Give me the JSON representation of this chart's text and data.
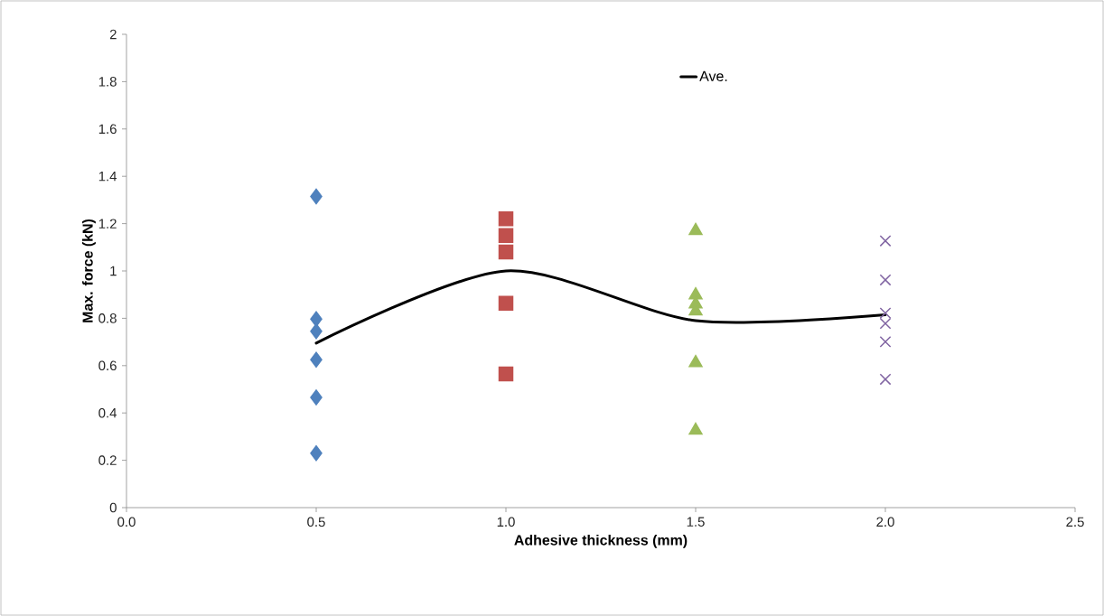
{
  "chart_data": {
    "type": "scatter",
    "xlabel": "Adhesive thickness (mm)",
    "ylabel": "Max. force (kN)",
    "xlim": [
      0,
      2.5
    ],
    "xticks": [
      {
        "value": 0,
        "label": "0.0"
      },
      {
        "value": 0.5,
        "label": "0.5"
      },
      {
        "value": 1,
        "label": "1.0"
      },
      {
        "value": 1.5,
        "label": "1.5"
      },
      {
        "value": 2,
        "label": "2.0"
      },
      {
        "value": 2.5,
        "label": "2.5"
      }
    ],
    "ylim": [
      0,
      2
    ],
    "yticks": [
      0,
      0.2,
      0.4,
      0.6,
      0.8,
      1,
      1.2,
      1.4,
      1.6,
      1.8,
      2
    ],
    "grid": false,
    "legend": "top right",
    "series": [
      {
        "marker": "diamond",
        "color": "#4f81bd",
        "x": [
          0.5,
          0.5,
          0.5,
          0.5,
          0.5,
          0.5
        ],
        "values": [
          1.315,
          0.797,
          0.745,
          0.625,
          0.466,
          0.23
        ]
      },
      {
        "marker": "square",
        "color": "#c0504d",
        "x": [
          1,
          1,
          1,
          1,
          1
        ],
        "values": [
          1.22,
          1.15,
          1.08,
          0.864,
          0.565
        ]
      },
      {
        "marker": "triangle",
        "color": "#9bbb59",
        "x": [
          1.5,
          1.5,
          1.5,
          1.5,
          1.5,
          1.5
        ],
        "values": [
          1.17,
          0.898,
          0.86,
          0.83,
          0.612,
          0.326
        ]
      },
      {
        "marker": "cross",
        "color": "#8064a2",
        "x": [
          2,
          2,
          2,
          2,
          2,
          2
        ],
        "values": [
          1.127,
          0.962,
          0.822,
          0.778,
          0.701,
          0.542
        ]
      },
      {
        "type": "line",
        "name": "Ave.",
        "marker": "none",
        "line_style": "solid",
        "color": "#000000",
        "x": [
          0.5,
          1,
          1.5,
          2
        ],
        "values": [
          0.695,
          1.0,
          0.79,
          0.815
        ]
      }
    ]
  }
}
